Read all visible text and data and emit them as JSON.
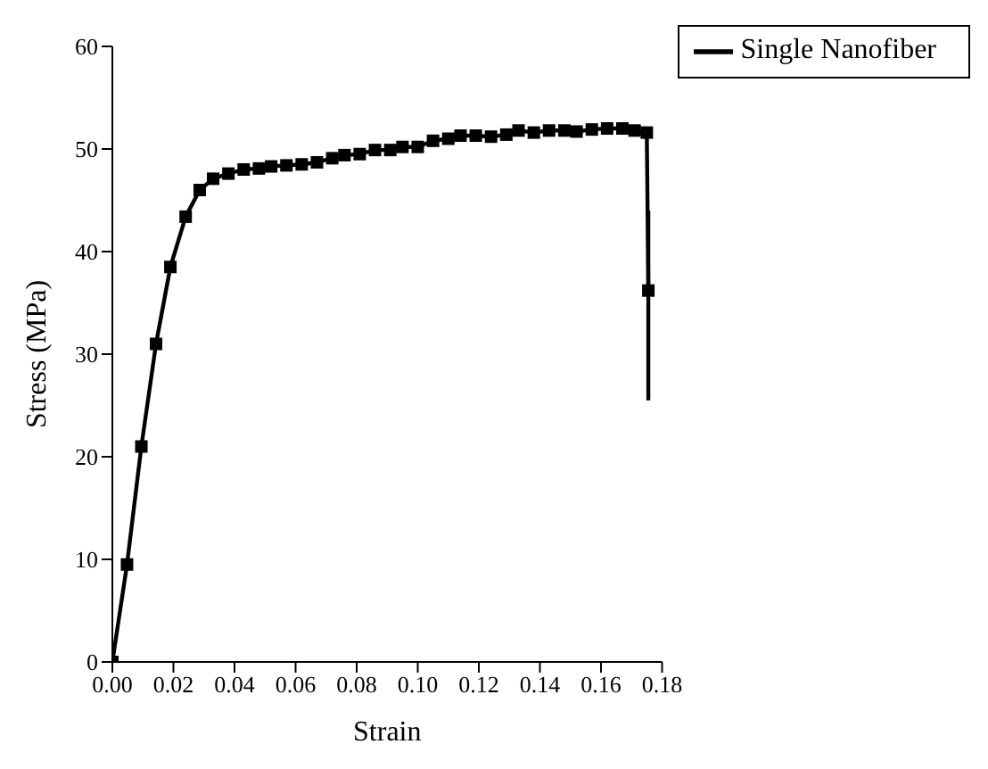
{
  "chart_data": {
    "type": "line",
    "xlabel": "Strain",
    "ylabel": "Stress (MPa)",
    "x": [
      0,
      0.0048,
      0.0095,
      0.0143,
      0.019,
      0.024,
      0.0286,
      0.033,
      0.038,
      0.043,
      0.048,
      0.052,
      0.057,
      0.062,
      0.067,
      0.072,
      0.076,
      0.081,
      0.086,
      0.091,
      0.095,
      0.1,
      0.105,
      0.11,
      0.114,
      0.119,
      0.124,
      0.129,
      0.133,
      0.138,
      0.143,
      0.148,
      0.152,
      0.157,
      0.162,
      0.167,
      0.171,
      0.175,
      0.1755
    ],
    "series": [
      {
        "name": "Single Nanofiber",
        "color": "#000000",
        "values": [
          0,
          9.5,
          21,
          31,
          38.5,
          43.4,
          46,
          47.1,
          47.6,
          48,
          48.1,
          48.3,
          48.4,
          48.5,
          48.7,
          49.1,
          49.4,
          49.5,
          49.9,
          49.9,
          50.2,
          50.2,
          50.8,
          51,
          51.3,
          51.3,
          51.2,
          51.4,
          51.8,
          51.6,
          51.8,
          51.8,
          51.7,
          51.9,
          52,
          52,
          51.8,
          51.6,
          36.2
        ],
        "errors": [
          null,
          null,
          null,
          null,
          null,
          null,
          null,
          null,
          null,
          null,
          null,
          null,
          null,
          null,
          null,
          null,
          null,
          null,
          null,
          null,
          null,
          null,
          null,
          null,
          null,
          null,
          null,
          null,
          null,
          null,
          null,
          null,
          null,
          null,
          null,
          null,
          null,
          null,
          [
            25.5,
            44
          ]
        ]
      }
    ],
    "xlim": [
      0,
      0.18
    ],
    "xticks": [
      {
        "value": 0,
        "label": "0.00"
      },
      0.02,
      0.04,
      0.06,
      0.08,
      {
        "value": 0.1,
        "label": "0.10"
      },
      0.12,
      0.14,
      0.16,
      0.18
    ],
    "ylim": [
      0,
      60
    ],
    "yticks": [
      0,
      10,
      20,
      30,
      40,
      50,
      60
    ],
    "grid": false,
    "legend": "top right",
    "marker": "square",
    "line_style": "solid"
  }
}
